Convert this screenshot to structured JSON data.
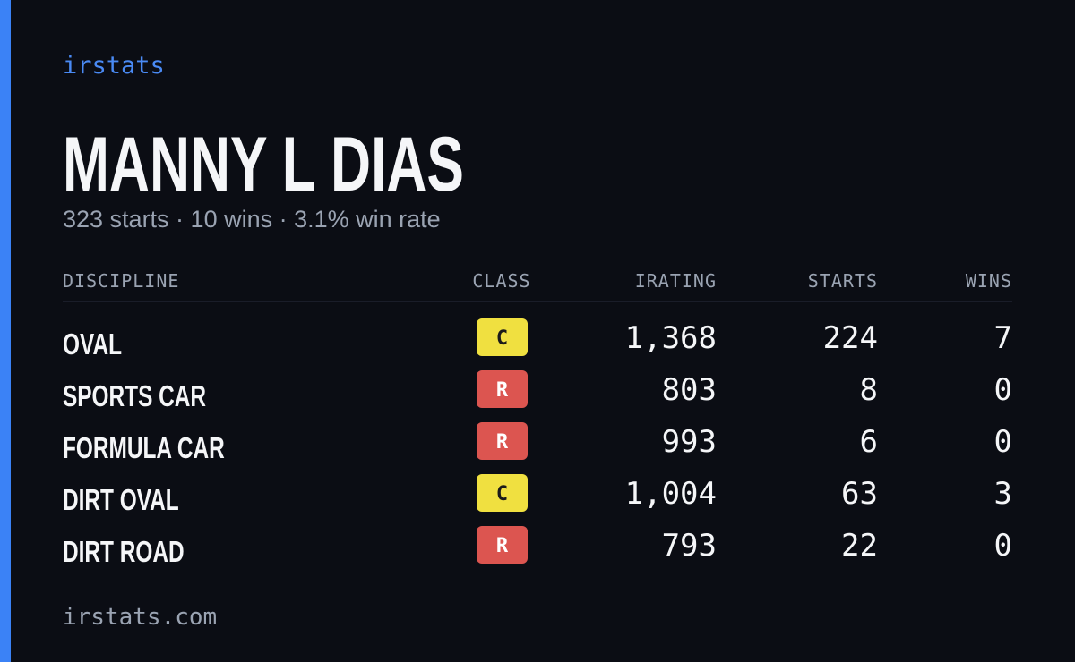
{
  "brand": "irstats",
  "driver": {
    "name": "MANNY L DIAS",
    "summary": "323 starts · 10 wins · 3.1% win rate"
  },
  "table": {
    "headers": [
      "DISCIPLINE",
      "CLASS",
      "IRATING",
      "STARTS",
      "WINS"
    ],
    "rows": [
      {
        "discipline": "OVAL",
        "class": "C",
        "class_color": "#f0e040",
        "class_text_color": "#1a1a1a",
        "irating": "1,368",
        "starts": "224",
        "wins": "7"
      },
      {
        "discipline": "SPORTS CAR",
        "class": "R",
        "class_color": "#dc5550",
        "class_text_color": "#ffffff",
        "irating": "803",
        "starts": "8",
        "wins": "0"
      },
      {
        "discipline": "FORMULA CAR",
        "class": "R",
        "class_color": "#dc5550",
        "class_text_color": "#ffffff",
        "irating": "993",
        "starts": "6",
        "wins": "0"
      },
      {
        "discipline": "DIRT OVAL",
        "class": "C",
        "class_color": "#f0e040",
        "class_text_color": "#1a1a1a",
        "irating": "1,004",
        "starts": "63",
        "wins": "3"
      },
      {
        "discipline": "DIRT ROAD",
        "class": "R",
        "class_color": "#dc5550",
        "class_text_color": "#ffffff",
        "irating": "793",
        "starts": "22",
        "wins": "0"
      }
    ]
  },
  "footer": "irstats.com"
}
